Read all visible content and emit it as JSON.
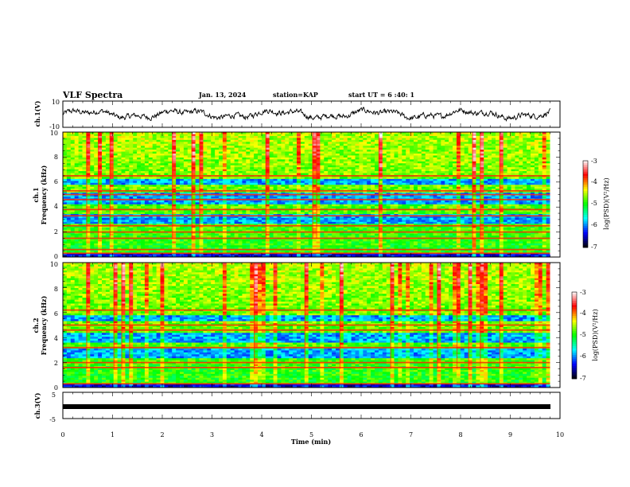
{
  "header": {
    "title": "VLF Spectra",
    "date": "Jan. 13, 2024",
    "station": "station=KAP",
    "start_ut": "start UT =  6 :40: 1"
  },
  "colors": {
    "trace": "#000000",
    "colormap": [
      "#000000",
      "#0000ff",
      "#00ffff",
      "#00ff00",
      "#ffff00",
      "#ff0000",
      "#ffffff"
    ]
  },
  "chart_data": [
    {
      "type": "line",
      "panel": "ch1-waveform",
      "ylabel": "ch.1(V)",
      "ylim": [
        -10,
        10
      ],
      "yticks": [
        "10",
        "-10"
      ],
      "x_range": [
        0,
        9.8
      ],
      "description_values": "noisy signal oscillating roughly between -4 and +4 V"
    },
    {
      "type": "heatmap",
      "panel": "ch1-spectrogram",
      "ylabel": "ch.1\nFrequency (kHz)",
      "ylabel_lines": [
        "ch.1",
        "Frequency (kHz)"
      ],
      "ylim": [
        0,
        10
      ],
      "yticks": [
        "0",
        "2",
        "4",
        "6",
        "8",
        "10"
      ],
      "xlim": [
        0,
        9.8
      ],
      "colorbar": {
        "label": "log(PSD)(V²/Hz)",
        "range": [
          -7,
          -3
        ],
        "ticks": [
          "-3",
          "-4",
          "-5",
          "-6",
          "-7"
        ]
      },
      "bands_khz": [
        0.3,
        0.6,
        1.5,
        2.0,
        2.5,
        3.3,
        3.8,
        4.6,
        5.0,
        5.3,
        6.5
      ],
      "low_psd_bands_khz": [
        [
          2.6,
          3.4
        ],
        [
          4.2,
          5.2
        ],
        [
          5.8,
          6.2
        ]
      ]
    },
    {
      "type": "heatmap",
      "panel": "ch2-spectrogram",
      "ylabel": "ch.2\nFrequency (kHz)",
      "ylabel_lines": [
        "ch.2",
        "Frequency (kHz)"
      ],
      "ylim": [
        0,
        10
      ],
      "yticks": [
        "0",
        "2",
        "4",
        "6",
        "8",
        "10"
      ],
      "xlim": [
        0,
        9.8
      ],
      "colorbar": {
        "label": "log(PSD)(V²/Hz)",
        "range": [
          -7,
          -3
        ],
        "ticks": [
          "-3",
          "-4",
          "-5",
          "-6",
          "-7"
        ]
      },
      "bands_khz": [
        0.3,
        1.6,
        2.0,
        3.2,
        4.6,
        5.0,
        6.2
      ],
      "low_psd_bands_khz": [
        [
          2.3,
          3.2
        ],
        [
          3.6,
          4.4
        ],
        [
          5.3,
          5.8
        ]
      ]
    },
    {
      "type": "line",
      "panel": "ch3-waveform",
      "ylabel": "ch.3(V)",
      "ylim": [
        -5,
        5
      ],
      "yticks": [
        "5",
        "0",
        "-5"
      ],
      "x_range": [
        0,
        9.8
      ],
      "level_v": 0
    }
  ],
  "xaxis": {
    "label": "Time (min)",
    "range": [
      0,
      10
    ],
    "ticks": [
      "0",
      "1",
      "2",
      "3",
      "4",
      "5",
      "6",
      "7",
      "8",
      "9",
      "10"
    ]
  }
}
